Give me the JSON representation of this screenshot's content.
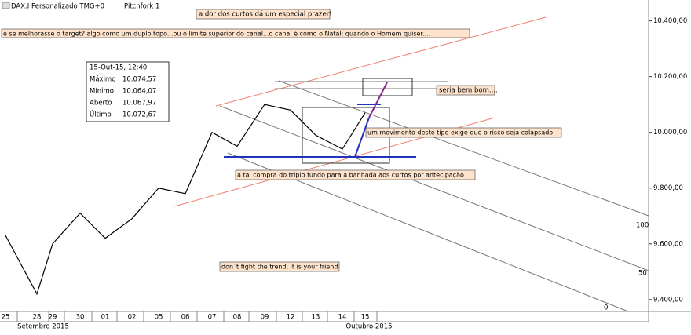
{
  "toolbar": {
    "instrument": "DAX.I Personalizado TMG+0",
    "tool": "Pitchfork 1"
  },
  "chart_data": {
    "type": "line",
    "categories": [
      "25",
      "28",
      "29",
      "30",
      "01",
      "02",
      "05",
      "06",
      "07",
      "08",
      "09",
      "12",
      "13",
      "14",
      "15"
    ],
    "values": [
      9630,
      9420,
      9600,
      9710,
      9620,
      9690,
      9800,
      9780,
      10000,
      9950,
      10100,
      10080,
      9990,
      9940,
      10070
    ],
    "color": "#000000",
    "ylim": [
      9360,
      10475
    ],
    "yticks": [
      {
        "value": 9400,
        "label": "9.400,00"
      },
      {
        "value": 9600,
        "label": "9.600,00"
      },
      {
        "value": 9800,
        "label": "9.800,00"
      },
      {
        "value": 10000,
        "label": "10.000,00"
      },
      {
        "value": 10200,
        "label": "10.200,00"
      },
      {
        "value": 10400,
        "label": "10.400,00"
      }
    ],
    "months": [
      "Setembro 2015",
      "Outubro 2015"
    ],
    "info_box": {
      "date": "15-Out-15, 12:40",
      "rows": [
        [
          "Máximo",
          "10.074,57"
        ],
        [
          "Mínimo",
          "10.064,07"
        ],
        [
          "Aberto",
          "10.067,97"
        ],
        [
          "Último",
          "10.072,67"
        ]
      ]
    },
    "pitchfork_labels": [
      "100",
      "50",
      "0"
    ],
    "annotations": [
      "a dor dos curtos dá um especial prazer!",
      "e se melhorasse o target? algo como um duplo topo...ou o limite superior do canal...o canal é como o Natal: quando o Homem quiser....",
      "seria bem bom....",
      "um movimento deste tipo exige que o risco seja colapsado",
      "a tal compra do triplo fundo para a banhada aos curtos por antecipação",
      "don´t fight the trend, it is your friend"
    ]
  }
}
